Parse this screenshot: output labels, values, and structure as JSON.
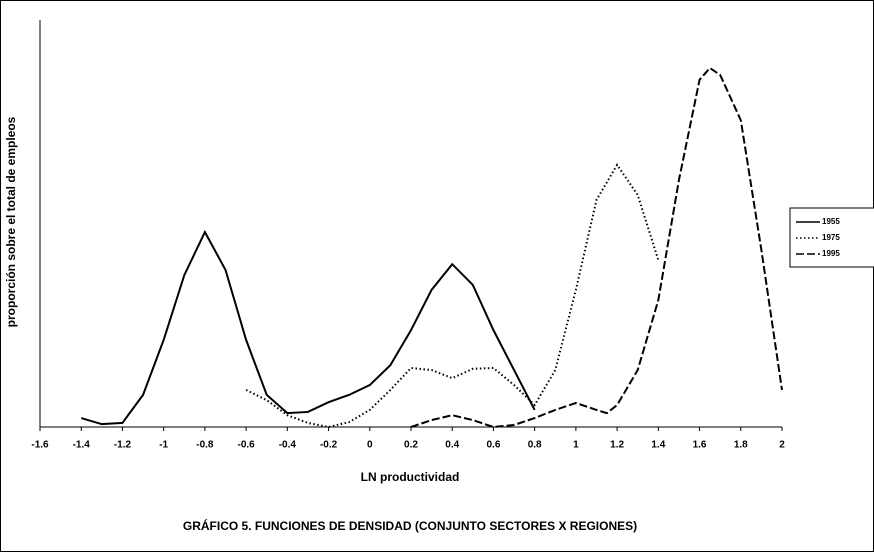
{
  "chart_data": {
    "type": "line",
    "title": "GRÁFICO 5. FUNCIONES DE DENSIDAD (CONJUNTO SECTORES X REGIONES)",
    "x_label": "LN productividad",
    "y_label": "proporción sobre el total de empleos",
    "xlim": [
      -1.6,
      2
    ],
    "xticks": [
      -1.6,
      -1.4,
      -1.2,
      -1,
      -0.8,
      -0.6,
      -0.4,
      -0.2,
      0,
      0.2,
      0.4,
      0.6,
      0.8,
      1,
      1.2,
      1.4,
      1.6,
      1.8,
      2
    ],
    "ylim": [
      0,
      100
    ],
    "legend": "right",
    "series": [
      {
        "name": "1955",
        "color": "#000000",
        "dash": "solid",
        "x": [
          -1.4,
          -1.3,
          -1.2,
          -1.1,
          -1.0,
          -0.9,
          -0.8,
          -0.7,
          -0.6,
          -0.5,
          -0.4,
          -0.3,
          -0.2,
          -0.1,
          0,
          0.1,
          0.2,
          0.3,
          0.4,
          0.5,
          0.6,
          0.7,
          0.8
        ],
        "values": [
          2.2,
          0.7,
          1,
          7.9,
          21.4,
          37.3,
          47.9,
          38.6,
          21.4,
          7.9,
          3.4,
          3.7,
          6.1,
          7.9,
          10.3,
          15.2,
          23.8,
          33.7,
          40,
          34.9,
          23.8,
          14,
          4.2
        ]
      },
      {
        "name": "1975",
        "color": "#000000",
        "dash": "dotted",
        "x": [
          -0.6,
          -0.5,
          -0.4,
          -0.3,
          -0.2,
          -0.1,
          0,
          0.1,
          0.2,
          0.3,
          0.4,
          0.5,
          0.6,
          0.7,
          0.8,
          0.9,
          1.0,
          1.1,
          1.2,
          1.3,
          1.4
        ],
        "values": [
          9.1,
          6.6,
          2.9,
          1,
          0,
          1.2,
          4.2,
          9.1,
          14.5,
          14,
          12,
          14.3,
          14.5,
          10.3,
          5.4,
          14,
          33.7,
          55.8,
          64.4,
          57,
          41
        ]
      },
      {
        "name": "1995",
        "color": "#000000",
        "dash": "dashed",
        "x": [
          0.2,
          0.3,
          0.4,
          0.5,
          0.6,
          0.7,
          0.8,
          0.9,
          1.0,
          1.1,
          1.15,
          1.2,
          1.3,
          1.4,
          1.5,
          1.6,
          1.65,
          1.7,
          1.8,
          1.9,
          2.0
        ],
        "values": [
          0,
          1.7,
          2.9,
          1.7,
          0,
          0.5,
          2.2,
          4.2,
          5.9,
          4.2,
          3.4,
          5.4,
          14,
          31.2,
          60.7,
          85.3,
          88.2,
          86.5,
          75.4,
          43.5,
          9.1
        ]
      }
    ]
  }
}
